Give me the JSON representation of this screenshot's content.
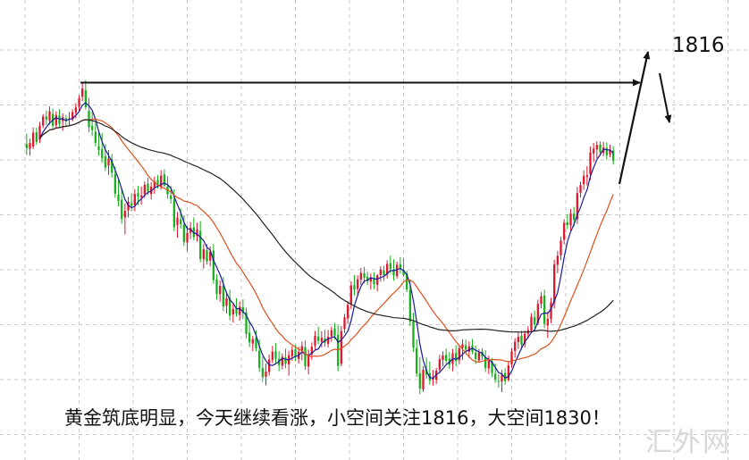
{
  "caption": "黄金筑底明显，今天继续看涨，小空间关注1816，大空间1830！",
  "target_label": "1816",
  "watermark": "汇外网",
  "colors": {
    "up": "#e0162b",
    "down": "#17b01c",
    "ma_fast": "#1a1a99",
    "ma_mid": "#e0501c",
    "ma_slow": "#222222",
    "grid": "#c8c8c8",
    "arrow": "#111111"
  },
  "chart_data": {
    "type": "candlestick",
    "title": "",
    "xlabel": "",
    "ylabel": "",
    "grid": true,
    "ylim": [
      1716,
      1834
    ],
    "candles": [
      {
        "o": 1796.2,
        "h": 1799.6,
        "l": 1792.7,
        "c": 1794.9
      },
      {
        "o": 1794.7,
        "h": 1797.9,
        "l": 1792.5,
        "c": 1796.6
      },
      {
        "o": 1795.4,
        "h": 1801.6,
        "l": 1794.6,
        "c": 1799.9
      },
      {
        "o": 1800.0,
        "h": 1801.5,
        "l": 1796.0,
        "c": 1796.9
      },
      {
        "o": 1797.6,
        "h": 1803.4,
        "l": 1796.5,
        "c": 1802.1
      },
      {
        "o": 1802.2,
        "h": 1805.9,
        "l": 1801.3,
        "c": 1805.1
      },
      {
        "o": 1805.1,
        "h": 1807.0,
        "l": 1802.4,
        "c": 1804.1
      },
      {
        "o": 1803.7,
        "h": 1808.3,
        "l": 1802.5,
        "c": 1806.7
      },
      {
        "o": 1805.9,
        "h": 1807.7,
        "l": 1801.3,
        "c": 1802.1
      },
      {
        "o": 1802.3,
        "h": 1806.8,
        "l": 1801.3,
        "c": 1805.6
      },
      {
        "o": 1805.4,
        "h": 1807.4,
        "l": 1801.8,
        "c": 1802.7
      },
      {
        "o": 1803.6,
        "h": 1806.1,
        "l": 1800.5,
        "c": 1804.8
      },
      {
        "o": 1804.5,
        "h": 1805.6,
        "l": 1801.9,
        "c": 1803.6
      },
      {
        "o": 1804.1,
        "h": 1806.6,
        "l": 1802.2,
        "c": 1804.4
      },
      {
        "o": 1804.2,
        "h": 1807.5,
        "l": 1803.5,
        "c": 1806.5
      },
      {
        "o": 1806.4,
        "h": 1809.4,
        "l": 1804.5,
        "c": 1808.0
      },
      {
        "o": 1808.3,
        "h": 1812.0,
        "l": 1806.7,
        "c": 1810.9
      },
      {
        "o": 1811.5,
        "h": 1815.9,
        "l": 1810.1,
        "c": 1814.1
      },
      {
        "o": 1813.6,
        "h": 1816.9,
        "l": 1807.3,
        "c": 1808.1
      },
      {
        "o": 1806.9,
        "h": 1811.1,
        "l": 1800.0,
        "c": 1801.7
      },
      {
        "o": 1802.1,
        "h": 1806.6,
        "l": 1798.8,
        "c": 1800.7
      },
      {
        "o": 1800.2,
        "h": 1803.1,
        "l": 1795.5,
        "c": 1796.6
      },
      {
        "o": 1795.5,
        "h": 1800.6,
        "l": 1792.4,
        "c": 1794.3
      },
      {
        "o": 1794.6,
        "h": 1799.8,
        "l": 1790.2,
        "c": 1791.7
      },
      {
        "o": 1792.3,
        "h": 1796.2,
        "l": 1787.5,
        "c": 1788.7
      },
      {
        "o": 1789.3,
        "h": 1794.3,
        "l": 1786.3,
        "c": 1791.5
      },
      {
        "o": 1791.4,
        "h": 1793.0,
        "l": 1785.4,
        "c": 1787.0
      },
      {
        "o": 1786.5,
        "h": 1789.0,
        "l": 1778.9,
        "c": 1780.2
      },
      {
        "o": 1779.9,
        "h": 1785.0,
        "l": 1776.1,
        "c": 1777.9
      },
      {
        "o": 1778.3,
        "h": 1781.8,
        "l": 1770.6,
        "c": 1772.1
      },
      {
        "o": 1772.6,
        "h": 1777.1,
        "l": 1767.1,
        "c": 1774.7
      },
      {
        "o": 1774.8,
        "h": 1779.2,
        "l": 1772.6,
        "c": 1777.6
      },
      {
        "o": 1777.1,
        "h": 1780.3,
        "l": 1774.6,
        "c": 1776.3
      },
      {
        "o": 1776.4,
        "h": 1781.7,
        "l": 1774.5,
        "c": 1780.1
      },
      {
        "o": 1780.4,
        "h": 1782.7,
        "l": 1776.6,
        "c": 1779.3
      },
      {
        "o": 1779.1,
        "h": 1782.5,
        "l": 1776.7,
        "c": 1779.6
      },
      {
        "o": 1780.1,
        "h": 1784.2,
        "l": 1778.9,
        "c": 1783.1
      },
      {
        "o": 1783.4,
        "h": 1785.4,
        "l": 1779.8,
        "c": 1780.8
      },
      {
        "o": 1780.1,
        "h": 1784.0,
        "l": 1778.4,
        "c": 1782.5
      },
      {
        "o": 1782.1,
        "h": 1785.7,
        "l": 1780.2,
        "c": 1784.2
      },
      {
        "o": 1784.7,
        "h": 1786.2,
        "l": 1781.9,
        "c": 1782.5
      },
      {
        "o": 1782.3,
        "h": 1787.8,
        "l": 1781.5,
        "c": 1786.0
      },
      {
        "o": 1786.4,
        "h": 1788.1,
        "l": 1782.5,
        "c": 1782.9
      },
      {
        "o": 1782.6,
        "h": 1785.8,
        "l": 1778.6,
        "c": 1780.0
      },
      {
        "o": 1779.6,
        "h": 1782.8,
        "l": 1777.0,
        "c": 1778.5
      },
      {
        "o": 1778.3,
        "h": 1781.6,
        "l": 1768.1,
        "c": 1769.4
      },
      {
        "o": 1770.1,
        "h": 1774.3,
        "l": 1766.0,
        "c": 1772.5
      },
      {
        "o": 1771.9,
        "h": 1775.4,
        "l": 1769.0,
        "c": 1770.4
      },
      {
        "o": 1770.2,
        "h": 1773.3,
        "l": 1763.4,
        "c": 1764.6
      },
      {
        "o": 1764.5,
        "h": 1769.9,
        "l": 1761.7,
        "c": 1767.6
      },
      {
        "o": 1767.6,
        "h": 1771.1,
        "l": 1765.6,
        "c": 1769.2
      },
      {
        "o": 1769.4,
        "h": 1772.6,
        "l": 1765.2,
        "c": 1766.2
      },
      {
        "o": 1766.6,
        "h": 1770.9,
        "l": 1764.8,
        "c": 1768.7
      },
      {
        "o": 1768.2,
        "h": 1771.4,
        "l": 1758.1,
        "c": 1759.2
      },
      {
        "o": 1759.1,
        "h": 1764.0,
        "l": 1756.1,
        "c": 1762.3
      },
      {
        "o": 1762.0,
        "h": 1764.0,
        "l": 1757.4,
        "c": 1758.4
      },
      {
        "o": 1758.7,
        "h": 1763.3,
        "l": 1756.8,
        "c": 1761.5
      },
      {
        "o": 1761.9,
        "h": 1764.0,
        "l": 1751.2,
        "c": 1752.4
      },
      {
        "o": 1752.6,
        "h": 1754.2,
        "l": 1746.1,
        "c": 1748.0
      },
      {
        "o": 1747.9,
        "h": 1752.3,
        "l": 1745.4,
        "c": 1750.5
      },
      {
        "o": 1750.6,
        "h": 1753.4,
        "l": 1742.4,
        "c": 1743.9
      },
      {
        "o": 1744.1,
        "h": 1748.7,
        "l": 1741.6,
        "c": 1746.5
      },
      {
        "o": 1746.6,
        "h": 1749.3,
        "l": 1739.4,
        "c": 1740.9
      },
      {
        "o": 1741.3,
        "h": 1744.9,
        "l": 1738.7,
        "c": 1743.1
      },
      {
        "o": 1743.2,
        "h": 1746.5,
        "l": 1740.6,
        "c": 1741.6
      },
      {
        "o": 1741.2,
        "h": 1745.5,
        "l": 1739.3,
        "c": 1743.8
      },
      {
        "o": 1743.7,
        "h": 1746.2,
        "l": 1739.8,
        "c": 1741.8
      },
      {
        "o": 1742.0,
        "h": 1743.5,
        "l": 1733.6,
        "c": 1735.1
      },
      {
        "o": 1735.4,
        "h": 1739.0,
        "l": 1730.8,
        "c": 1732.3
      },
      {
        "o": 1731.9,
        "h": 1734.4,
        "l": 1729.5,
        "c": 1733.4
      },
      {
        "o": 1733.8,
        "h": 1736.2,
        "l": 1729.4,
        "c": 1730.4
      },
      {
        "o": 1729.6,
        "h": 1733.2,
        "l": 1722.8,
        "c": 1724.1
      },
      {
        "o": 1724.0,
        "h": 1727.7,
        "l": 1719.6,
        "c": 1721.2
      },
      {
        "o": 1721.2,
        "h": 1725.5,
        "l": 1718.5,
        "c": 1722.9
      },
      {
        "o": 1722.8,
        "h": 1728.4,
        "l": 1721.6,
        "c": 1726.8
      },
      {
        "o": 1726.6,
        "h": 1731.2,
        "l": 1725.6,
        "c": 1729.3
      },
      {
        "o": 1729.5,
        "h": 1732.2,
        "l": 1725.5,
        "c": 1727.0
      },
      {
        "o": 1727.0,
        "h": 1729.5,
        "l": 1723.0,
        "c": 1725.0
      },
      {
        "o": 1724.8,
        "h": 1728.8,
        "l": 1723.6,
        "c": 1727.7
      },
      {
        "o": 1727.5,
        "h": 1730.3,
        "l": 1724.0,
        "c": 1725.4
      },
      {
        "o": 1725.2,
        "h": 1729.6,
        "l": 1721.6,
        "c": 1728.2
      },
      {
        "o": 1727.9,
        "h": 1731.1,
        "l": 1726.4,
        "c": 1729.9
      },
      {
        "o": 1730.1,
        "h": 1731.6,
        "l": 1726.3,
        "c": 1727.7
      },
      {
        "o": 1727.0,
        "h": 1730.9,
        "l": 1725.5,
        "c": 1729.3
      },
      {
        "o": 1729.6,
        "h": 1732.6,
        "l": 1726.5,
        "c": 1731.1
      },
      {
        "o": 1730.8,
        "h": 1733.0,
        "l": 1723.5,
        "c": 1724.6
      },
      {
        "o": 1724.5,
        "h": 1730.0,
        "l": 1722.0,
        "c": 1728.2
      },
      {
        "o": 1728.4,
        "h": 1732.3,
        "l": 1726.7,
        "c": 1730.9
      },
      {
        "o": 1731.3,
        "h": 1736.0,
        "l": 1729.9,
        "c": 1734.4
      },
      {
        "o": 1734.2,
        "h": 1737.4,
        "l": 1731.7,
        "c": 1732.8
      },
      {
        "o": 1732.5,
        "h": 1735.9,
        "l": 1730.7,
        "c": 1733.8
      },
      {
        "o": 1733.5,
        "h": 1736.4,
        "l": 1730.9,
        "c": 1732.2
      },
      {
        "o": 1731.8,
        "h": 1736.3,
        "l": 1730.7,
        "c": 1734.1
      },
      {
        "o": 1734.2,
        "h": 1737.4,
        "l": 1732.5,
        "c": 1736.2
      },
      {
        "o": 1736.8,
        "h": 1738.6,
        "l": 1733.3,
        "c": 1734.5
      },
      {
        "o": 1734.7,
        "h": 1737.8,
        "l": 1723.0,
        "c": 1724.7
      },
      {
        "o": 1725.4,
        "h": 1737.6,
        "l": 1724.6,
        "c": 1736.0
      },
      {
        "o": 1736.6,
        "h": 1741.5,
        "l": 1735.4,
        "c": 1740.4
      },
      {
        "o": 1740.0,
        "h": 1745.6,
        "l": 1738.3,
        "c": 1744.4
      },
      {
        "o": 1744.6,
        "h": 1752.0,
        "l": 1743.1,
        "c": 1750.7
      },
      {
        "o": 1750.8,
        "h": 1754.0,
        "l": 1747.4,
        "c": 1749.3
      },
      {
        "o": 1749.5,
        "h": 1753.9,
        "l": 1747.3,
        "c": 1752.6
      },
      {
        "o": 1752.5,
        "h": 1756.3,
        "l": 1750.8,
        "c": 1754.7
      },
      {
        "o": 1754.6,
        "h": 1756.6,
        "l": 1751.3,
        "c": 1753.1
      },
      {
        "o": 1753.4,
        "h": 1755.1,
        "l": 1750.8,
        "c": 1752.0
      },
      {
        "o": 1751.9,
        "h": 1754.5,
        "l": 1749.3,
        "c": 1753.3
      },
      {
        "o": 1752.7,
        "h": 1754.9,
        "l": 1749.5,
        "c": 1751.1
      },
      {
        "o": 1750.9,
        "h": 1754.3,
        "l": 1748.8,
        "c": 1753.9
      },
      {
        "o": 1754.0,
        "h": 1756.8,
        "l": 1751.9,
        "c": 1755.7
      },
      {
        "o": 1755.5,
        "h": 1757.0,
        "l": 1752.1,
        "c": 1754.0
      },
      {
        "o": 1754.1,
        "h": 1758.8,
        "l": 1752.9,
        "c": 1757.6
      },
      {
        "o": 1757.8,
        "h": 1760.2,
        "l": 1754.4,
        "c": 1756.0
      },
      {
        "o": 1755.8,
        "h": 1759.1,
        "l": 1752.2,
        "c": 1753.9
      },
      {
        "o": 1753.7,
        "h": 1758.3,
        "l": 1752.9,
        "c": 1757.3
      },
      {
        "o": 1757.5,
        "h": 1759.8,
        "l": 1754.5,
        "c": 1755.9
      },
      {
        "o": 1755.7,
        "h": 1759.4,
        "l": 1753.5,
        "c": 1754.0
      },
      {
        "o": 1754.6,
        "h": 1755.4,
        "l": 1748.5,
        "c": 1749.4
      },
      {
        "o": 1749.2,
        "h": 1752.3,
        "l": 1737.6,
        "c": 1739.0
      },
      {
        "o": 1739.1,
        "h": 1741.9,
        "l": 1729.2,
        "c": 1730.6
      },
      {
        "o": 1730.5,
        "h": 1733.3,
        "l": 1721.2,
        "c": 1722.3
      },
      {
        "o": 1722.4,
        "h": 1727.6,
        "l": 1715.6,
        "c": 1717.4
      },
      {
        "o": 1717.2,
        "h": 1724.7,
        "l": 1716.4,
        "c": 1723.5
      },
      {
        "o": 1723.6,
        "h": 1727.4,
        "l": 1720.5,
        "c": 1721.9
      },
      {
        "o": 1722.3,
        "h": 1726.1,
        "l": 1718.7,
        "c": 1720.0
      },
      {
        "o": 1720.3,
        "h": 1723.4,
        "l": 1718.4,
        "c": 1721.0
      },
      {
        "o": 1720.3,
        "h": 1724.1,
        "l": 1718.9,
        "c": 1723.2
      },
      {
        "o": 1723.5,
        "h": 1728.3,
        "l": 1722.7,
        "c": 1726.9
      },
      {
        "o": 1726.6,
        "h": 1729.4,
        "l": 1724.6,
        "c": 1728.1
      },
      {
        "o": 1728.3,
        "h": 1730.3,
        "l": 1725.5,
        "c": 1726.4
      },
      {
        "o": 1727.1,
        "h": 1729.2,
        "l": 1723.8,
        "c": 1725.1
      },
      {
        "o": 1725.4,
        "h": 1730.2,
        "l": 1723.0,
        "c": 1728.8
      },
      {
        "o": 1728.9,
        "h": 1731.4,
        "l": 1724.6,
        "c": 1726.3
      },
      {
        "o": 1726.6,
        "h": 1731.5,
        "l": 1725.3,
        "c": 1730.4
      },
      {
        "o": 1730.5,
        "h": 1733.3,
        "l": 1726.7,
        "c": 1731.7
      },
      {
        "o": 1731.4,
        "h": 1733.2,
        "l": 1728.6,
        "c": 1730.0
      },
      {
        "o": 1729.3,
        "h": 1732.6,
        "l": 1727.3,
        "c": 1731.0
      },
      {
        "o": 1731.3,
        "h": 1733.4,
        "l": 1728.5,
        "c": 1729.3
      },
      {
        "o": 1729.0,
        "h": 1731.3,
        "l": 1725.4,
        "c": 1727.0
      },
      {
        "o": 1726.5,
        "h": 1730.2,
        "l": 1725.8,
        "c": 1729.0
      },
      {
        "o": 1729.4,
        "h": 1730.5,
        "l": 1726.7,
        "c": 1727.7
      },
      {
        "o": 1727.5,
        "h": 1729.8,
        "l": 1722.8,
        "c": 1724.1
      },
      {
        "o": 1723.9,
        "h": 1728.0,
        "l": 1722.1,
        "c": 1726.4
      },
      {
        "o": 1726.1,
        "h": 1727.3,
        "l": 1721.1,
        "c": 1722.4
      },
      {
        "o": 1722.2,
        "h": 1725.5,
        "l": 1719.3,
        "c": 1720.4
      },
      {
        "o": 1719.9,
        "h": 1722.0,
        "l": 1717.7,
        "c": 1719.6
      },
      {
        "o": 1719.7,
        "h": 1723.4,
        "l": 1716.3,
        "c": 1721.9
      },
      {
        "o": 1722.4,
        "h": 1724.0,
        "l": 1718.7,
        "c": 1719.8
      },
      {
        "o": 1720.3,
        "h": 1726.0,
        "l": 1719.7,
        "c": 1724.9
      },
      {
        "o": 1725.2,
        "h": 1730.5,
        "l": 1724.2,
        "c": 1729.3
      },
      {
        "o": 1729.6,
        "h": 1733.7,
        "l": 1727.4,
        "c": 1732.5
      },
      {
        "o": 1732.4,
        "h": 1735.5,
        "l": 1730.2,
        "c": 1734.1
      },
      {
        "o": 1734.5,
        "h": 1736.1,
        "l": 1730.0,
        "c": 1731.5
      },
      {
        "o": 1731.7,
        "h": 1736.2,
        "l": 1730.7,
        "c": 1735.1
      },
      {
        "o": 1735.1,
        "h": 1737.5,
        "l": 1733.6,
        "c": 1736.3
      },
      {
        "o": 1736.1,
        "h": 1741.7,
        "l": 1735.6,
        "c": 1740.6
      },
      {
        "o": 1740.4,
        "h": 1742.6,
        "l": 1736.8,
        "c": 1738.1
      },
      {
        "o": 1738.5,
        "h": 1746.1,
        "l": 1737.9,
        "c": 1744.7
      },
      {
        "o": 1744.7,
        "h": 1748.5,
        "l": 1743.3,
        "c": 1747.2
      },
      {
        "o": 1747.4,
        "h": 1749.3,
        "l": 1736.9,
        "c": 1738.3
      },
      {
        "o": 1737.8,
        "h": 1742.2,
        "l": 1733.7,
        "c": 1739.9
      },
      {
        "o": 1739.9,
        "h": 1746.7,
        "l": 1738.5,
        "c": 1745.2
      },
      {
        "o": 1745.0,
        "h": 1758.9,
        "l": 1743.2,
        "c": 1757.5
      },
      {
        "o": 1757.3,
        "h": 1761.8,
        "l": 1754.6,
        "c": 1760.2
      },
      {
        "o": 1760.4,
        "h": 1766.4,
        "l": 1758.8,
        "c": 1765.1
      },
      {
        "o": 1765.4,
        "h": 1772.0,
        "l": 1763.9,
        "c": 1770.8
      },
      {
        "o": 1771.0,
        "h": 1773.6,
        "l": 1768.8,
        "c": 1770.1
      },
      {
        "o": 1770.0,
        "h": 1775.3,
        "l": 1768.3,
        "c": 1773.8
      },
      {
        "o": 1773.8,
        "h": 1776.0,
        "l": 1769.6,
        "c": 1771.8
      },
      {
        "o": 1772.0,
        "h": 1782.4,
        "l": 1770.5,
        "c": 1780.4
      },
      {
        "o": 1780.5,
        "h": 1784.1,
        "l": 1779.0,
        "c": 1783.0
      },
      {
        "o": 1783.3,
        "h": 1787.8,
        "l": 1781.5,
        "c": 1785.9
      },
      {
        "o": 1785.7,
        "h": 1789.1,
        "l": 1782.9,
        "c": 1786.2
      },
      {
        "o": 1786.4,
        "h": 1795.4,
        "l": 1784.6,
        "c": 1793.5
      },
      {
        "o": 1793.2,
        "h": 1796.6,
        "l": 1790.4,
        "c": 1794.7
      },
      {
        "o": 1794.5,
        "h": 1797.1,
        "l": 1791.6,
        "c": 1795.9
      },
      {
        "o": 1796.1,
        "h": 1797.1,
        "l": 1792.4,
        "c": 1793.6
      },
      {
        "o": 1793.4,
        "h": 1796.9,
        "l": 1792.3,
        "c": 1795.1
      },
      {
        "o": 1795.0,
        "h": 1796.8,
        "l": 1791.2,
        "c": 1792.6
      },
      {
        "o": 1792.9,
        "h": 1796.0,
        "l": 1791.9,
        "c": 1794.4
      },
      {
        "o": 1794.2,
        "h": 1795.6,
        "l": 1789.6,
        "c": 1790.8
      }
    ],
    "ma_periods": [
      5,
      20,
      60
    ],
    "annotations": {
      "target_level": 1816,
      "target_label": "1816"
    }
  }
}
